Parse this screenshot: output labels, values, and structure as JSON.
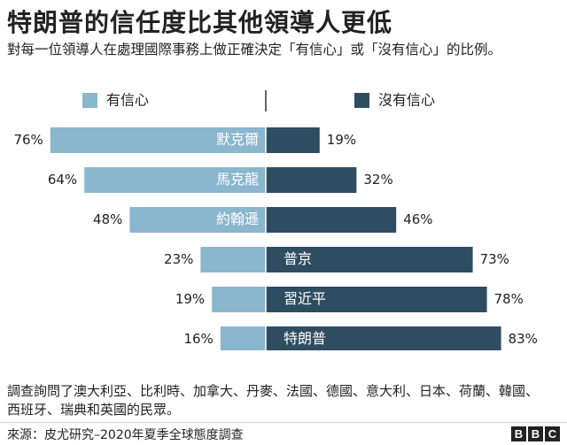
{
  "header": {
    "title": "特朗普的信任度比其他領導人更低",
    "subtitle": "對每一位領導人在處理國際事務上做正確決定「有信心」或「沒有信心」的比例。"
  },
  "chart_data": {
    "type": "bar",
    "orientation": "diverging-horizontal",
    "categories": [
      "默克爾",
      "馬克龍",
      "約翰遜",
      "普京",
      "習近平",
      "特朗普"
    ],
    "series": [
      {
        "name": "有信心",
        "values": [
          76,
          64,
          48,
          23,
          19,
          16
        ],
        "color": "#8ab6ce"
      },
      {
        "name": "沒有信心",
        "values": [
          19,
          32,
          46,
          73,
          78,
          83
        ],
        "color": "#2f4d61"
      }
    ],
    "value_labels": {
      "left": [
        "76%",
        "64%",
        "48%",
        "23%",
        "19%",
        "16%"
      ],
      "right": [
        "19%",
        "32%",
        "46%",
        "73%",
        "78%",
        "83%"
      ]
    },
    "legend_position": "top",
    "grid": false
  },
  "footer": {
    "note": "調查詢問了澳大利亞、比利時、加拿大、丹麥、法國、德國、意大利、日本、荷蘭、韓國、西班牙、瑞典和英國的民眾。",
    "source": "來源：皮尤研究–2020年夏季全球態度調查",
    "logo": [
      "B",
      "B",
      "C"
    ]
  }
}
